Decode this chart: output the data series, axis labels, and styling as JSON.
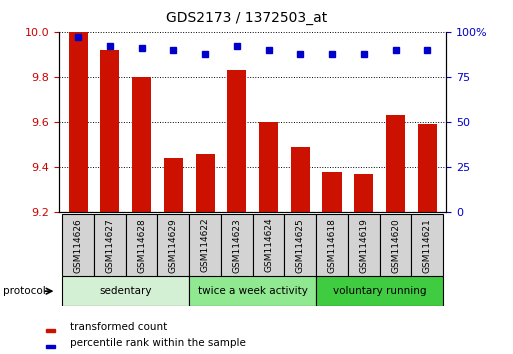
{
  "title": "GDS2173 / 1372503_at",
  "samples": [
    "GSM114626",
    "GSM114627",
    "GSM114628",
    "GSM114629",
    "GSM114622",
    "GSM114623",
    "GSM114624",
    "GSM114625",
    "GSM114618",
    "GSM114619",
    "GSM114620",
    "GSM114621"
  ],
  "red_values": [
    10.0,
    9.92,
    9.8,
    9.44,
    9.46,
    9.83,
    9.6,
    9.49,
    9.38,
    9.37,
    9.63,
    9.59
  ],
  "blue_values": [
    97,
    92,
    91,
    90,
    88,
    92,
    90,
    88,
    88,
    88,
    90,
    90
  ],
  "ylim_left": [
    9.2,
    10.0
  ],
  "ylim_right": [
    0,
    100
  ],
  "yticks_left": [
    9.2,
    9.4,
    9.6,
    9.8,
    10.0
  ],
  "yticks_right": [
    0,
    25,
    50,
    75,
    100
  ],
  "ytick_right_labels": [
    "0",
    "25",
    "50",
    "75",
    "100%"
  ],
  "groups": [
    {
      "label": "sedentary",
      "start": 0,
      "end": 4,
      "color": "#d4f0d4"
    },
    {
      "label": "twice a week activity",
      "start": 4,
      "end": 8,
      "color": "#90e890"
    },
    {
      "label": "voluntary running",
      "start": 8,
      "end": 12,
      "color": "#40cc40"
    }
  ],
  "protocol_label": "protocol",
  "legend_red": "transformed count",
  "legend_blue": "percentile rank within the sample",
  "bar_color": "#cc1100",
  "dot_color": "#0000cc",
  "bar_width": 0.6,
  "baseline": 9.2,
  "background_color": "#ffffff",
  "tick_color_left": "#cc0000",
  "tick_color_right": "#0000cc",
  "sample_box_color": "#d3d3d3"
}
